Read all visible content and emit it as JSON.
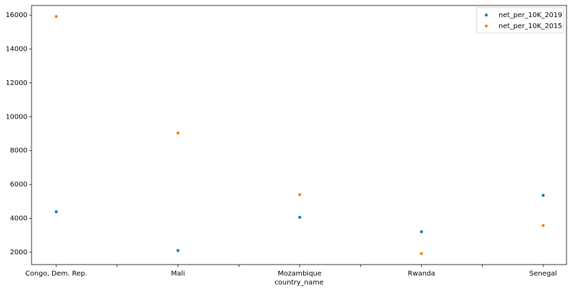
{
  "chart_data": {
    "type": "scatter",
    "x_label": "country_name",
    "categories": [
      "Congo, Dem. Rep.",
      null,
      "Mali",
      null,
      "Mozambique",
      null,
      "Rwanda",
      null,
      "Senegal"
    ],
    "series": [
      {
        "name": "net_per_10K_2019",
        "color": "#1f77b4",
        "values": [
          4390,
          null,
          2100,
          null,
          4060,
          null,
          3210,
          null,
          5360
        ]
      },
      {
        "name": "net_per_10K_2015",
        "color": "#ff7f0e",
        "values": [
          15920,
          null,
          9040,
          null,
          5400,
          null,
          1920,
          null,
          3580
        ]
      }
    ],
    "ylim": [
      1270,
      16570
    ],
    "yticks": [
      2000,
      4000,
      6000,
      8000,
      10000,
      12000,
      14000,
      16000
    ],
    "legend": "upper right"
  }
}
